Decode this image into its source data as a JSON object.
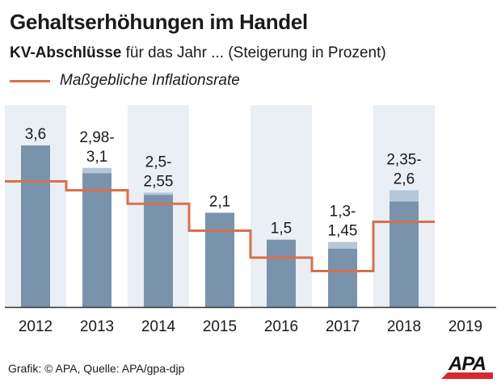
{
  "title": "Gehaltserhöhungen im Handel",
  "subtitle_bold": "KV-Abschlüsse",
  "subtitle_rest": " für das Jahr ... (Steigerung in Prozent)",
  "legend_label": "Maßgebliche Inflationsrate",
  "footer": "Grafik: © APA, Quelle: APA/gpa-djp",
  "logo": "APA",
  "colors": {
    "bar": "#7a93ad",
    "bar_range": "#b4c7d8",
    "band": "#e9eff4",
    "inflation": "#d9704a",
    "axis": "#333333"
  },
  "chart_data": {
    "type": "bar",
    "title": "Gehaltserhöhungen im Handel",
    "ylabel": "Steigerung in Prozent",
    "ylim": [
      0,
      4.5
    ],
    "categories": [
      "2012",
      "2013",
      "2014",
      "2015",
      "2016",
      "2017",
      "2018",
      "2019"
    ],
    "series": [
      {
        "name": "KV-Abschlüsse (min)",
        "values": [
          3.6,
          2.98,
          2.5,
          2.1,
          1.5,
          1.3,
          2.35,
          null
        ]
      },
      {
        "name": "KV-Abschlüsse (max)",
        "values": [
          3.6,
          3.1,
          2.55,
          2.1,
          1.5,
          1.45,
          2.6,
          null
        ]
      },
      {
        "name": "Maßgebliche Inflationsrate",
        "values": [
          2.8,
          2.6,
          2.3,
          1.7,
          1.1,
          0.8,
          1.9,
          null
        ]
      }
    ],
    "labels": [
      [
        "3,6"
      ],
      [
        "2,98-",
        "3,1"
      ],
      [
        "2,5-",
        "2,55"
      ],
      [
        "2,1"
      ],
      [
        "1,5"
      ],
      [
        "1,3-",
        "1,45"
      ],
      [
        "2,35-",
        "2,6"
      ],
      []
    ]
  }
}
